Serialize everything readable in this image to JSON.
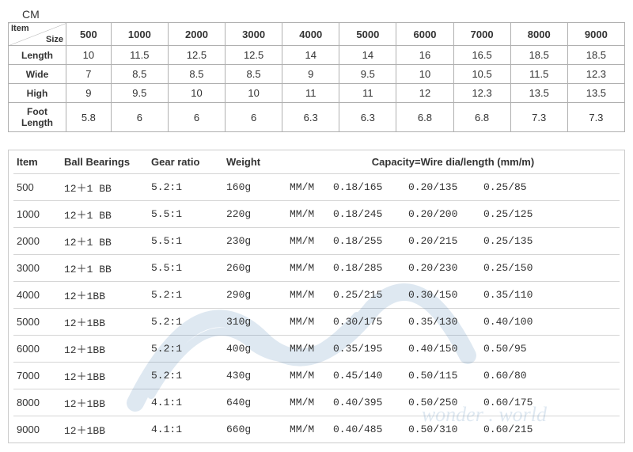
{
  "unit_label": "CM",
  "top_table": {
    "corner_item": "Item",
    "corner_size": "Size",
    "size_headers": [
      "500",
      "1000",
      "2000",
      "3000",
      "4000",
      "5000",
      "6000",
      "7000",
      "8000",
      "9000"
    ],
    "rows": [
      {
        "label": "Length",
        "values": [
          "10",
          "11.5",
          "12.5",
          "12.5",
          "14",
          "14",
          "16",
          "16.5",
          "18.5",
          "18.5"
        ]
      },
      {
        "label": "Wide",
        "values": [
          "7",
          "8.5",
          "8.5",
          "8.5",
          "9",
          "9.5",
          "10",
          "10.5",
          "11.5",
          "12.3"
        ]
      },
      {
        "label": "High",
        "values": [
          "9",
          "9.5",
          "10",
          "10",
          "11",
          "11",
          "12",
          "12.3",
          "13.5",
          "13.5"
        ]
      },
      {
        "label": "Foot Length",
        "values": [
          "5.8",
          "6",
          "6",
          "6",
          "6.3",
          "6.3",
          "6.8",
          "6.8",
          "7.3",
          "7.3"
        ]
      }
    ],
    "border_color": "#b0b0b0",
    "font_size": 13
  },
  "bottom_table": {
    "headers": {
      "item": "Item",
      "bb": "Ball Bearings",
      "gear": "Gear ratio",
      "weight": "Weight",
      "capacity": "Capacity=Wire dia/length (mm/m)"
    },
    "unit_text": "MM/M",
    "rows": [
      {
        "item": "500",
        "bb": "12＋1 BB",
        "gear": "5.2:1",
        "weight": "160g",
        "caps": [
          "0.18/165",
          "0.20/135",
          "0.25/85"
        ]
      },
      {
        "item": "1000",
        "bb": "12＋1 BB",
        "gear": "5.5:1",
        "weight": "220g",
        "caps": [
          "0.18/245",
          "0.20/200",
          "0.25/125"
        ]
      },
      {
        "item": "2000",
        "bb": "12＋1 BB",
        "gear": "5.5:1",
        "weight": "230g",
        "caps": [
          "0.18/255",
          "0.20/215",
          "0.25/135"
        ]
      },
      {
        "item": "3000",
        "bb": "12＋1 BB",
        "gear": "5.5:1",
        "weight": "260g",
        "caps": [
          "0.18/285",
          "0.20/230",
          "0.25/150"
        ]
      },
      {
        "item": "4000",
        "bb": "12＋1BB",
        "gear": "5.2:1",
        "weight": "290g",
        "caps": [
          "0.25/215",
          "0.30/150",
          "0.35/110"
        ]
      },
      {
        "item": "5000",
        "bb": "12＋1BB",
        "gear": "5.2:1",
        "weight": "310g",
        "caps": [
          "0.30/175",
          "0.35/130",
          "0.40/100"
        ]
      },
      {
        "item": "6000",
        "bb": "12＋1BB",
        "gear": "5.2:1",
        "weight": "400g",
        "caps": [
          "0.35/195",
          "0.40/150",
          "0.50/95"
        ]
      },
      {
        "item": "7000",
        "bb": "12＋1BB",
        "gear": "5.2:1",
        "weight": "430g",
        "caps": [
          "0.45/140",
          "0.50/115",
          "0.60/80"
        ]
      },
      {
        "item": "8000",
        "bb": "12＋1BB",
        "gear": "4.1:1",
        "weight": "640g",
        "caps": [
          "0.40/395",
          "0.50/250",
          "0.60/175"
        ]
      },
      {
        "item": "9000",
        "bb": "12＋1BB",
        "gear": "4.1:1",
        "weight": "660g",
        "caps": [
          "0.40/485",
          "0.50/310",
          "0.60/215"
        ]
      }
    ],
    "border_color": "#cccccc",
    "row_border_color": "#d5d5d5",
    "font_size": 13,
    "mono_font": "Courier New"
  },
  "watermark": {
    "color": "#2a6aa8",
    "opacity": 0.15
  }
}
